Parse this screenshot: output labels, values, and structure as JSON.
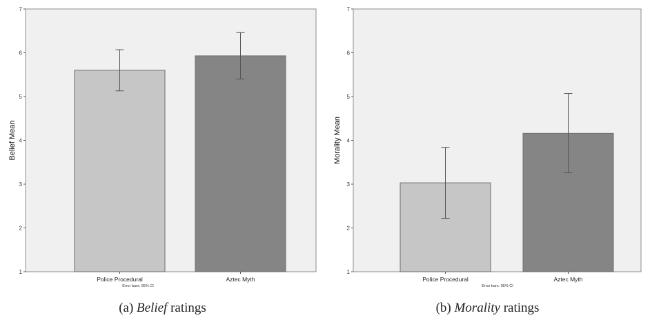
{
  "chart_data": [
    {
      "type": "bar",
      "categories": [
        "Police Procedural",
        "Aztec Myth"
      ],
      "values": [
        5.6,
        5.93
      ],
      "error_bars": [
        [
          5.13,
          6.07
        ],
        [
          5.4,
          6.46
        ]
      ],
      "ylabel": "Belief Mean",
      "ylim": [
        1,
        7
      ],
      "yticks": [
        "1",
        "2",
        "3",
        "4",
        "5",
        "6",
        "7"
      ],
      "note": "Error bars: 95% CI",
      "caption_prefix": "(a)",
      "caption_italic": "Belief",
      "caption_suffix": "ratings",
      "bar_colors": [
        "#c6c6c6",
        "#858585"
      ],
      "plot_background": "#f0f0f0",
      "grid": false
    },
    {
      "type": "bar",
      "categories": [
        "Police Procedural",
        "Aztec Myth"
      ],
      "values": [
        3.03,
        4.16
      ],
      "error_bars": [
        [
          2.22,
          3.84
        ],
        [
          3.26,
          5.07
        ]
      ],
      "ylabel": "Morality Mean",
      "ylim": [
        1,
        7
      ],
      "yticks": [
        "1",
        "2",
        "3",
        "4",
        "5",
        "6",
        "7"
      ],
      "note": "Error bars: 95% CI",
      "caption_prefix": "(b)",
      "caption_italic": "Morality",
      "caption_suffix": "ratings",
      "bar_colors": [
        "#c6c6c6",
        "#858585"
      ],
      "plot_background": "#f0f0f0",
      "grid": false
    }
  ]
}
